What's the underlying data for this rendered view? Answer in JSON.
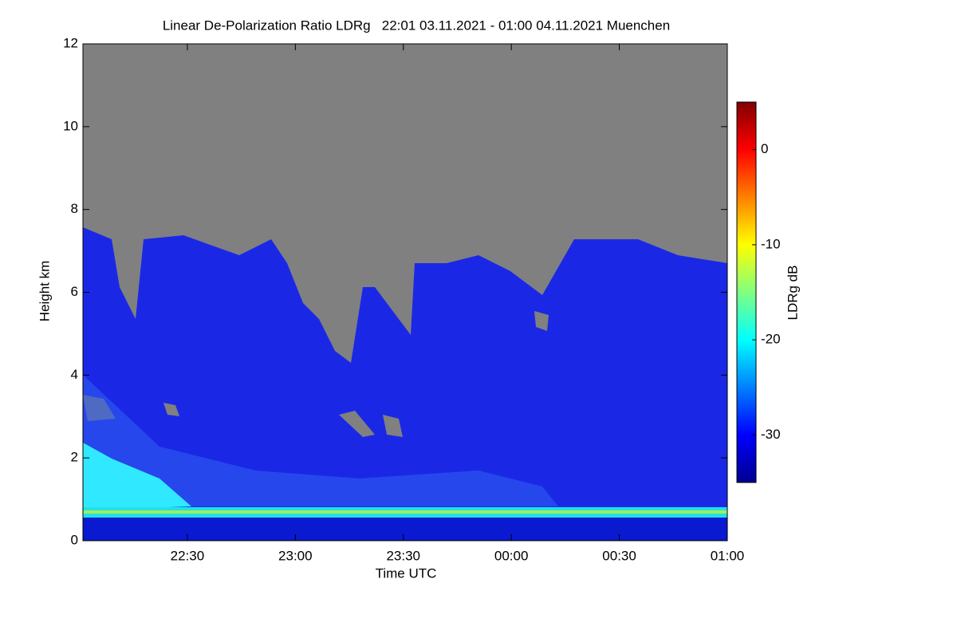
{
  "chart_data": {
    "type": "heatmap",
    "title": "Linear De-Polarization Ratio LDRg   22:01 03.11.2021 - 01:00 04.11.2021 Muenchen",
    "xlabel": "Time UTC",
    "ylabel": "Height km",
    "xlim": [
      1,
      180
    ],
    "xticks": [
      {
        "value": 30,
        "label": "22:30"
      },
      {
        "value": 60,
        "label": "23:00"
      },
      {
        "value": 90,
        "label": "23:30"
      },
      {
        "value": 120,
        "label": "00:00"
      },
      {
        "value": 150,
        "label": "00:30"
      },
      {
        "value": 180,
        "label": "01:00"
      }
    ],
    "ylim": [
      0,
      12
    ],
    "yticks": [
      0,
      2,
      4,
      6,
      8,
      10,
      12
    ],
    "colorbar_label": "LDRg dB",
    "clim": [
      -35,
      5
    ],
    "cticks": [
      0,
      -10,
      -20,
      -30
    ],
    "colormap": [
      "#00008f",
      "#0000ff",
      "#0080ff",
      "#00ffff",
      "#80ff80",
      "#ffff00",
      "#ff8000",
      "#ff0000",
      "#800000"
    ],
    "missing_color": "#808080"
  }
}
